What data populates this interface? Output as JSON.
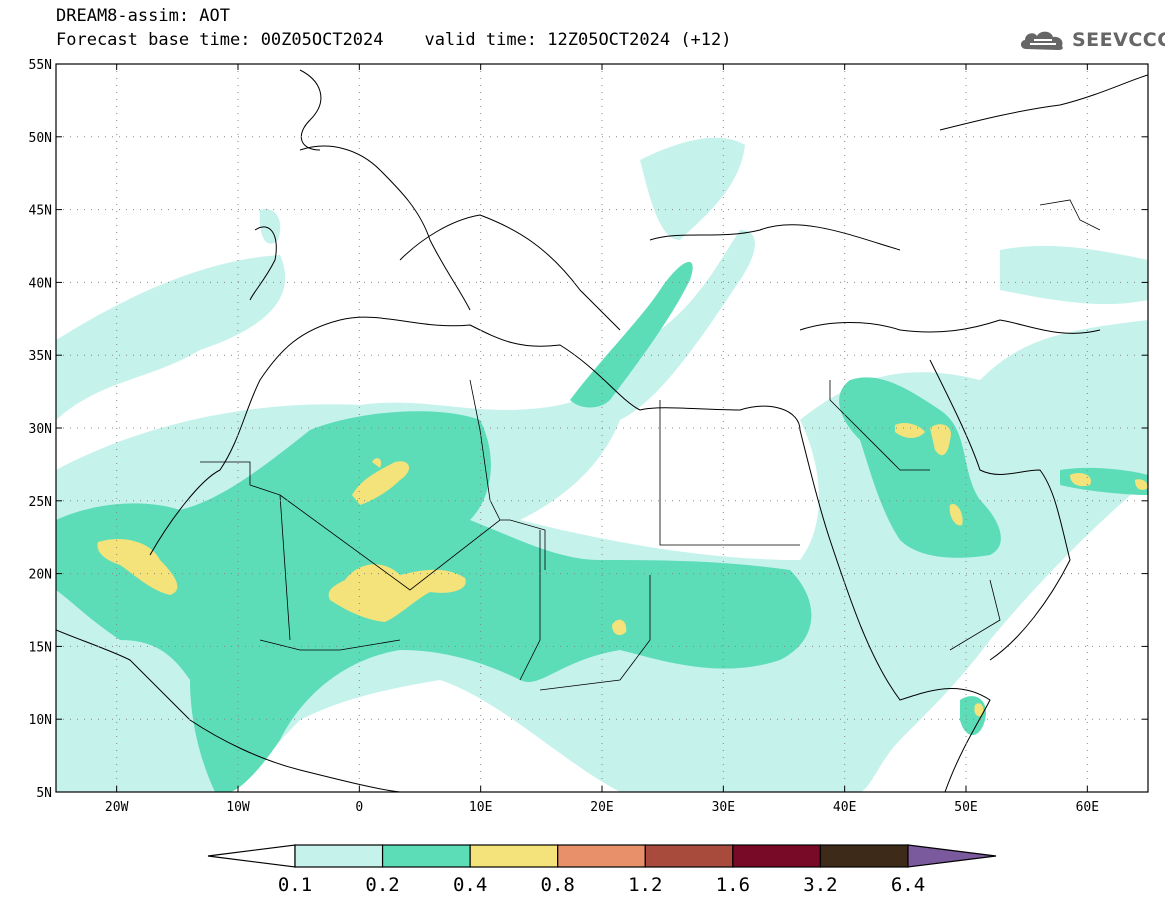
{
  "header": {
    "title": "DREAM8-assim: AOT",
    "subtitle": "Forecast base time: 00Z05OCT2024    valid time: 12Z05OCT2024 (+12)",
    "logo_text": "SEEVCCC",
    "logo_icon": "cloud-icon"
  },
  "map": {
    "projection": "lat-lon",
    "lon_range": [
      -25,
      65
    ],
    "lat_range": [
      5,
      55
    ],
    "grid": "dotted",
    "y_ticks": [
      "5N",
      "10N",
      "15N",
      "20N",
      "25N",
      "30N",
      "35N",
      "40N",
      "45N",
      "50N",
      "55N"
    ],
    "x_ticks": [
      "20W",
      "10W",
      "0",
      "10E",
      "20E",
      "30E",
      "40E",
      "50E",
      "60E"
    ]
  },
  "colorbar": {
    "labels": [
      "0.1",
      "0.2",
      "0.4",
      "0.8",
      "1.2",
      "1.6",
      "3.2",
      "6.4"
    ],
    "colors": [
      "#ffffff",
      "#c6f2ec",
      "#5cddb8",
      "#f4e27a",
      "#e8906a",
      "#a84a3c",
      "#780a28",
      "#3e2a18",
      "#7a5a9c"
    ]
  }
}
